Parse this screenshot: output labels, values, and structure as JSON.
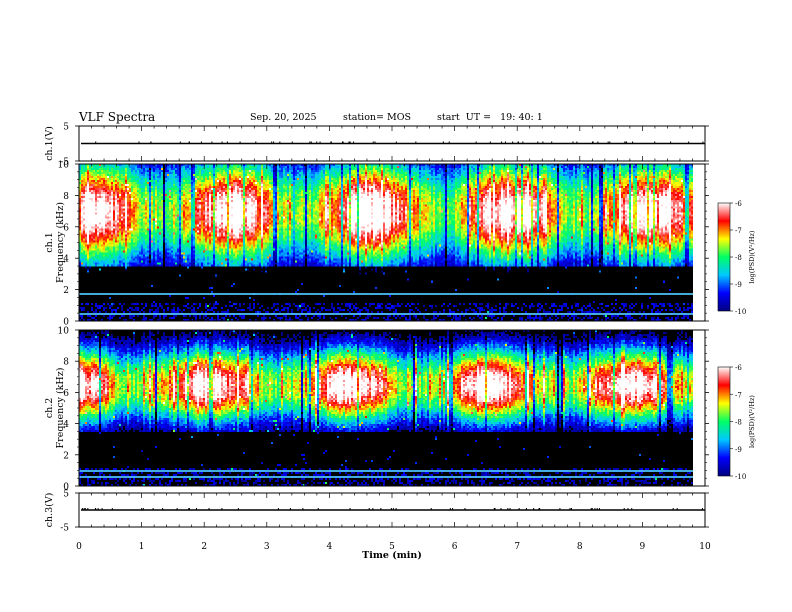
{
  "header": {
    "title": "VLF Spectra",
    "date": "Sep. 20, 2025",
    "station": "station= MOS",
    "start_ut": "start  UT =   19: 40: 1"
  },
  "colors": {
    "spectrogram_background": "#000000",
    "colorbar": [
      "#000080",
      "#0000ff",
      "#00c8ff",
      "#00ff64",
      "#ffff00",
      "#ff0000",
      "#ffffff"
    ]
  },
  "chart_data": [
    {
      "type": "line",
      "ylabel": "ch.1(V)",
      "ylim": [
        -5,
        5
      ],
      "yticks": [
        "5",
        "-5"
      ],
      "x": [
        0,
        10
      ],
      "y": [
        0,
        0
      ]
    },
    {
      "type": "heatmap",
      "ylabel": "ch.1\nFrequency (kHz)",
      "ylim": [
        0,
        10
      ],
      "yticks": [
        "0",
        "2",
        "4",
        "6",
        "8",
        "10"
      ],
      "colorbar": {
        "label": "log(PSD)(V²/Hz)",
        "range": [
          -10,
          -6
        ],
        "ticks": [
          "-6",
          "-7",
          "-8",
          "-9",
          "-10"
        ]
      },
      "intensity_profile": {
        "peak_band_khz": [
          5,
          9
        ],
        "lines_khz": [
          0.5,
          1.8
        ]
      }
    },
    {
      "type": "heatmap",
      "ylabel": "ch.2\nFrequency (kHz)",
      "ylim": [
        0,
        10
      ],
      "yticks": [
        "0",
        "2",
        "4",
        "6",
        "8",
        "10"
      ],
      "colorbar": {
        "label": "log(PSD)(V²/Hz)",
        "range": [
          -10,
          -6
        ],
        "ticks": [
          "-6",
          "-7",
          "-8",
          "-9",
          "-10"
        ]
      },
      "intensity_profile": {
        "peak_band_khz": [
          5.5,
          7.5
        ],
        "lines_khz": [
          0.6,
          1.0
        ]
      }
    },
    {
      "type": "line",
      "ylabel": "ch.3(V)",
      "ylim": [
        -5,
        5
      ],
      "yticks": [
        "5",
        "-5"
      ],
      "x": [
        0,
        10
      ],
      "y": [
        0,
        0
      ]
    }
  ],
  "xaxis": {
    "label": "Time (min)",
    "xlim": [
      0,
      10
    ],
    "ticks": [
      "0",
      "1",
      "2",
      "3",
      "4",
      "5",
      "6",
      "7",
      "8",
      "9",
      "10"
    ]
  }
}
